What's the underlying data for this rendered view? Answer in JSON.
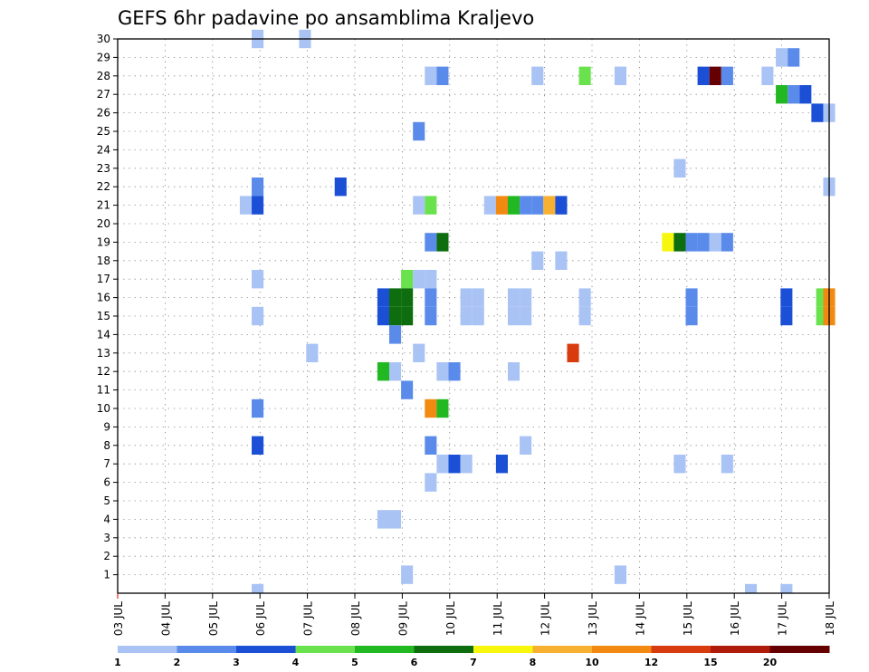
{
  "chart_data": {
    "type": "heatmap",
    "title": "GEFS 6hr padavine po ansamblima Kraljevo",
    "xlabel": "",
    "ylabel": "",
    "x_labels": [
      "03 JUL",
      "04 JUL",
      "05 JUL",
      "06 JUL",
      "07 JUL",
      "08 JUL",
      "09 JUL",
      "10 JUL",
      "11 JUL",
      "12 JUL",
      "13 JUL",
      "14 JUL",
      "15 JUL",
      "16 JUL",
      "17 JUL",
      "18 JUL"
    ],
    "y_labels": [
      "1",
      "2",
      "3",
      "4",
      "5",
      "6",
      "7",
      "8",
      "9",
      "10",
      "11",
      "12",
      "13",
      "14",
      "15",
      "16",
      "17",
      "18",
      "19",
      "20",
      "21",
      "22",
      "23",
      "24",
      "25",
      "26",
      "27",
      "28",
      "29",
      "30"
    ],
    "xlim": [
      0,
      15
    ],
    "ylim": [
      0,
      30
    ],
    "grid": true,
    "colorbar": {
      "labels": [
        "1",
        "2",
        "3",
        "4",
        "5",
        "6",
        "7",
        "8",
        "10",
        "12",
        "15",
        "20"
      ],
      "colors": [
        "#a9c3f5",
        "#5b8bea",
        "#1a4fd6",
        "#6ae24d",
        "#21b821",
        "#0e6d0e",
        "#f7f70d",
        "#f7b030",
        "#f28a12",
        "#d83b0e",
        "#b01c0c",
        "#660000"
      ]
    },
    "cells": [
      {
        "x": 2.95,
        "y": 30,
        "c": 0
      },
      {
        "x": 3.95,
        "y": 30,
        "c": 0
      },
      {
        "x": 14.0,
        "y": 29,
        "c": 0
      },
      {
        "x": 14.25,
        "y": 29,
        "c": 1
      },
      {
        "x": 6.6,
        "y": 28,
        "c": 0
      },
      {
        "x": 6.85,
        "y": 28,
        "c": 1
      },
      {
        "x": 8.85,
        "y": 28,
        "c": 0
      },
      {
        "x": 9.85,
        "y": 28,
        "c": 3
      },
      {
        "x": 10.6,
        "y": 28,
        "c": 0
      },
      {
        "x": 12.35,
        "y": 28,
        "c": 2
      },
      {
        "x": 12.6,
        "y": 28,
        "c": 11
      },
      {
        "x": 12.85,
        "y": 28,
        "c": 1
      },
      {
        "x": 13.7,
        "y": 28,
        "c": 0
      },
      {
        "x": 14.0,
        "y": 27,
        "c": 4
      },
      {
        "x": 14.25,
        "y": 27,
        "c": 1
      },
      {
        "x": 14.5,
        "y": 27,
        "c": 2
      },
      {
        "x": 14.75,
        "y": 26,
        "c": 2
      },
      {
        "x": 15.0,
        "y": 26,
        "c": 0
      },
      {
        "x": 6.35,
        "y": 25,
        "c": 1
      },
      {
        "x": 11.85,
        "y": 23,
        "c": 0
      },
      {
        "x": 2.95,
        "y": 22,
        "c": 1
      },
      {
        "x": 4.7,
        "y": 22,
        "c": 2
      },
      {
        "x": 15.0,
        "y": 22,
        "c": 0
      },
      {
        "x": 2.7,
        "y": 21,
        "c": 0
      },
      {
        "x": 2.95,
        "y": 21,
        "c": 2
      },
      {
        "x": 6.35,
        "y": 21,
        "c": 0
      },
      {
        "x": 6.6,
        "y": 21,
        "c": 3
      },
      {
        "x": 7.85,
        "y": 21,
        "c": 0
      },
      {
        "x": 8.1,
        "y": 21,
        "c": 8
      },
      {
        "x": 8.35,
        "y": 21,
        "c": 4
      },
      {
        "x": 8.6,
        "y": 21,
        "c": 1
      },
      {
        "x": 8.85,
        "y": 21,
        "c": 1
      },
      {
        "x": 9.1,
        "y": 21,
        "c": 7
      },
      {
        "x": 9.35,
        "y": 21,
        "c": 2
      },
      {
        "x": 6.6,
        "y": 19,
        "c": 1
      },
      {
        "x": 6.85,
        "y": 19,
        "c": 5
      },
      {
        "x": 11.6,
        "y": 19,
        "c": 6
      },
      {
        "x": 11.85,
        "y": 19,
        "c": 5
      },
      {
        "x": 12.1,
        "y": 19,
        "c": 1
      },
      {
        "x": 12.35,
        "y": 19,
        "c": 1
      },
      {
        "x": 12.6,
        "y": 19,
        "c": 0
      },
      {
        "x": 12.85,
        "y": 19,
        "c": 1
      },
      {
        "x": 8.85,
        "y": 18,
        "c": 0
      },
      {
        "x": 9.35,
        "y": 18,
        "c": 0
      },
      {
        "x": 2.95,
        "y": 17,
        "c": 0
      },
      {
        "x": 6.1,
        "y": 17,
        "c": 3
      },
      {
        "x": 6.35,
        "y": 17,
        "c": 0
      },
      {
        "x": 6.6,
        "y": 17,
        "c": 0
      },
      {
        "x": 5.6,
        "y": 16,
        "c": 2
      },
      {
        "x": 5.85,
        "y": 16,
        "c": 5
      },
      {
        "x": 6.1,
        "y": 16,
        "c": 5
      },
      {
        "x": 6.6,
        "y": 16,
        "c": 1
      },
      {
        "x": 7.35,
        "y": 16,
        "c": 0
      },
      {
        "x": 7.6,
        "y": 16,
        "c": 0
      },
      {
        "x": 8.35,
        "y": 16,
        "c": 0
      },
      {
        "x": 8.6,
        "y": 16,
        "c": 0
      },
      {
        "x": 9.85,
        "y": 16,
        "c": 0
      },
      {
        "x": 12.1,
        "y": 16,
        "c": 1
      },
      {
        "x": 14.1,
        "y": 16,
        "c": 2
      },
      {
        "x": 14.85,
        "y": 16,
        "c": 3
      },
      {
        "x": 15.0,
        "y": 16,
        "c": 8
      },
      {
        "x": 2.95,
        "y": 15,
        "c": 0
      },
      {
        "x": 5.6,
        "y": 15,
        "c": 2
      },
      {
        "x": 5.85,
        "y": 15,
        "c": 5
      },
      {
        "x": 6.1,
        "y": 15,
        "c": 5
      },
      {
        "x": 6.6,
        "y": 15,
        "c": 1
      },
      {
        "x": 7.35,
        "y": 15,
        "c": 0
      },
      {
        "x": 7.6,
        "y": 15,
        "c": 0
      },
      {
        "x": 8.35,
        "y": 15,
        "c": 0
      },
      {
        "x": 8.6,
        "y": 15,
        "c": 0
      },
      {
        "x": 9.85,
        "y": 15,
        "c": 0
      },
      {
        "x": 12.1,
        "y": 15,
        "c": 1
      },
      {
        "x": 14.1,
        "y": 15,
        "c": 2
      },
      {
        "x": 14.85,
        "y": 15,
        "c": 3
      },
      {
        "x": 15.0,
        "y": 15,
        "c": 8
      },
      {
        "x": 5.85,
        "y": 14,
        "c": 1
      },
      {
        "x": 4.1,
        "y": 13,
        "c": 0
      },
      {
        "x": 6.35,
        "y": 13,
        "c": 0
      },
      {
        "x": 9.6,
        "y": 13,
        "c": 9
      },
      {
        "x": 5.6,
        "y": 12,
        "c": 4
      },
      {
        "x": 5.85,
        "y": 12,
        "c": 0
      },
      {
        "x": 6.85,
        "y": 12,
        "c": 0
      },
      {
        "x": 7.1,
        "y": 12,
        "c": 1
      },
      {
        "x": 8.35,
        "y": 12,
        "c": 0
      },
      {
        "x": 6.1,
        "y": 11,
        "c": 1
      },
      {
        "x": 2.95,
        "y": 10,
        "c": 1
      },
      {
        "x": 6.6,
        "y": 10,
        "c": 8
      },
      {
        "x": 6.85,
        "y": 10,
        "c": 4
      },
      {
        "x": 2.95,
        "y": 8,
        "c": 2
      },
      {
        "x": 6.6,
        "y": 8,
        "c": 1
      },
      {
        "x": 8.6,
        "y": 8,
        "c": 0
      },
      {
        "x": 6.85,
        "y": 7,
        "c": 0
      },
      {
        "x": 7.1,
        "y": 7,
        "c": 2
      },
      {
        "x": 7.35,
        "y": 7,
        "c": 0
      },
      {
        "x": 8.1,
        "y": 7,
        "c": 2
      },
      {
        "x": 11.85,
        "y": 7,
        "c": 0
      },
      {
        "x": 12.85,
        "y": 7,
        "c": 0
      },
      {
        "x": 6.6,
        "y": 6,
        "c": 0
      },
      {
        "x": 5.6,
        "y": 4,
        "c": 0
      },
      {
        "x": 5.85,
        "y": 4,
        "c": 0
      },
      {
        "x": 6.1,
        "y": 1,
        "c": 0
      },
      {
        "x": 10.6,
        "y": 1,
        "c": 0
      },
      {
        "x": 2.95,
        "y": 0,
        "c": 0
      },
      {
        "x": 13.35,
        "y": 0,
        "c": 0
      },
      {
        "x": 14.1,
        "y": 0,
        "c": 0
      }
    ]
  }
}
